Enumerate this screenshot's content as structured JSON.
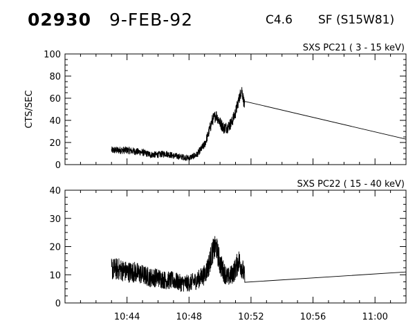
{
  "header": {
    "event_id": "02930",
    "date": "9-FEB-92",
    "flare_class": "C4.6",
    "location": "SF (S15W81)"
  },
  "chart_data": [
    {
      "type": "line",
      "title": "SXS PC21  (  3 - 15 keV)",
      "ylabel": "CTS/SEC",
      "xlabel": "",
      "ylim": [
        0,
        100
      ],
      "yticks": [
        0,
        20,
        40,
        60,
        80,
        100
      ],
      "xlim": [
        "10:40",
        "11:02"
      ],
      "xticks": [
        "10:44",
        "10:48",
        "10:52",
        "10:56",
        "11:00"
      ],
      "show_xtick_labels": false,
      "grid": false,
      "series": [
        {
          "x": [
            "10:43",
            "10:43.5",
            "10:44",
            "10:44.5",
            "10:45",
            "10:45.5",
            "10:46",
            "10:46.5",
            "10:47",
            "10:47.5",
            "10:48",
            "10:48.5",
            "10:49",
            "10:49.25",
            "10:49.5",
            "10:49.75",
            "10:50",
            "10:50.25",
            "10:50.5",
            "10:50.75",
            "10:51",
            "10:51.2",
            "10:51.4",
            "10:51.6",
            "11:02"
          ],
          "values": [
            13,
            13,
            13,
            12,
            11,
            9,
            9,
            10,
            8,
            7,
            6,
            9,
            18,
            28,
            40,
            45,
            38,
            33,
            34,
            38,
            47,
            58,
            68,
            52,
            23
          ]
        }
      ]
    },
    {
      "type": "line",
      "title": "SXS PC22  ( 15 - 40 keV)",
      "ylabel": "",
      "xlabel": "",
      "ylim": [
        0,
        40
      ],
      "yticks": [
        0,
        10,
        20,
        30,
        40
      ],
      "xlim": [
        "10:40",
        "11:02"
      ],
      "xticks": [
        "10:44",
        "10:48",
        "10:52",
        "10:56",
        "11:00"
      ],
      "xtick_labels": [
        "10:44",
        "10:48",
        "10:52",
        "10:56",
        "11:00"
      ],
      "grid": false,
      "series": [
        {
          "x": [
            "10:43",
            "10:43.5",
            "10:44",
            "10:44.5",
            "10:45",
            "10:45.5",
            "10:46",
            "10:46.5",
            "10:47",
            "10:47.5",
            "10:48",
            "10:48.5",
            "10:49",
            "10:49.25",
            "10:49.5",
            "10:49.75",
            "10:50",
            "10:50.25",
            "10:50.5",
            "10:50.75",
            "10:51",
            "10:51.2",
            "10:51.4",
            "10:51.6",
            "11:02"
          ],
          "values": [
            12,
            12,
            11,
            11,
            10,
            9,
            9,
            8,
            8,
            7,
            7,
            8,
            10,
            13,
            18,
            20,
            14,
            11,
            9,
            10,
            12,
            15,
            13,
            9,
            11
          ]
        }
      ]
    }
  ]
}
